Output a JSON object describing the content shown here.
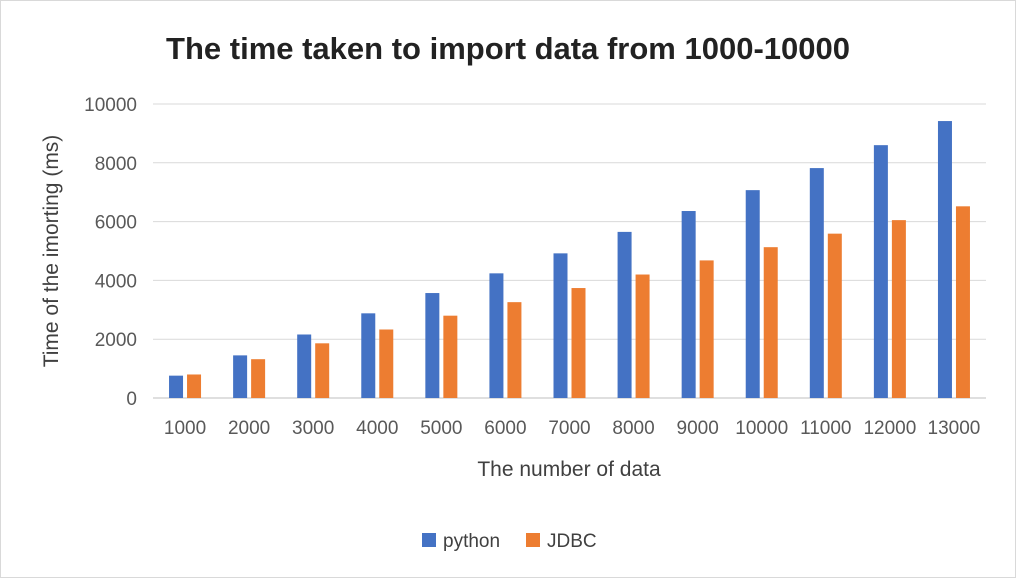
{
  "chart_data": {
    "type": "bar",
    "title": "The time taken to import data from 1000-10000",
    "xlabel": "The number of data",
    "ylabel": "Time of the imorting (ms)",
    "categories": [
      "1000",
      "2000",
      "3000",
      "4000",
      "5000",
      "6000",
      "7000",
      "8000",
      "9000",
      "10000",
      "11000",
      "12000",
      "13000"
    ],
    "ylim": [
      0,
      10000
    ],
    "yticks": [
      "0",
      "2000",
      "4000",
      "6000",
      "8000",
      "10000"
    ],
    "grid": true,
    "legend_position": "bottom",
    "series": [
      {
        "name": "python",
        "color": "#4472c4",
        "values": [
          760,
          1450,
          2160,
          2880,
          3570,
          4240,
          4920,
          5650,
          6360,
          7070,
          7820,
          8600,
          9420
        ]
      },
      {
        "name": "JDBC",
        "color": "#ed7d31",
        "values": [
          800,
          1320,
          1860,
          2330,
          2800,
          3260,
          3740,
          4200,
          4680,
          5130,
          5590,
          6050,
          6520
        ]
      }
    ]
  }
}
